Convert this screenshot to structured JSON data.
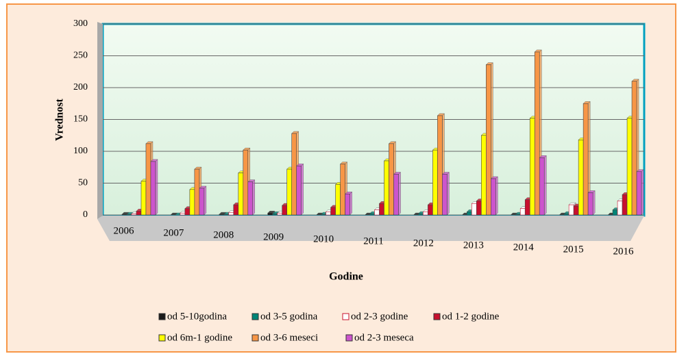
{
  "chart_data": {
    "type": "bar",
    "x_label": "Godine",
    "y_label": "Vrednost",
    "categories": [
      "2006",
      "2007",
      "2008",
      "2009",
      "2010",
      "2011",
      "2012",
      "2013",
      "2014",
      "2015",
      "2016"
    ],
    "ylim": [
      0,
      300
    ],
    "yticks": [
      0,
      50,
      100,
      150,
      200,
      250,
      300
    ],
    "grid": true,
    "legend": "bottom",
    "series": [
      {
        "name": "od 5-10godina",
        "color": "#1a1a1a",
        "values": [
          1,
          0,
          1,
          3,
          0,
          0,
          0,
          0,
          0,
          0,
          0
        ]
      },
      {
        "name": "od 3-5 godina",
        "color": "#008577",
        "values": [
          1,
          0,
          1,
          2,
          1,
          2,
          2,
          5,
          1,
          2,
          8
        ]
      },
      {
        "name": "od 2-3 godine",
        "color": "#ffffff",
        "values": [
          2,
          3,
          4,
          3,
          5,
          8,
          5,
          18,
          10,
          16,
          22
        ]
      },
      {
        "name": "od 1-2 godine",
        "color": "#c8102e",
        "values": [
          6,
          10,
          16,
          15,
          12,
          18,
          16,
          22,
          24,
          14,
          32
        ]
      },
      {
        "name": "od 6m-1 godine",
        "color": "#ffff00",
        "values": [
          53,
          40,
          66,
          72,
          48,
          85,
          102,
          125,
          152,
          118,
          152
        ]
      },
      {
        "name": "od 3-6 meseci",
        "color": "#f79646",
        "values": [
          112,
          72,
          102,
          128,
          80,
          112,
          156,
          236,
          256,
          175,
          210
        ]
      },
      {
        "name": "od 2-3 meseca",
        "color": "#cc55cc",
        "values": [
          84,
          42,
          52,
          77,
          33,
          64,
          64,
          57,
          90,
          35,
          68
        ]
      }
    ]
  }
}
